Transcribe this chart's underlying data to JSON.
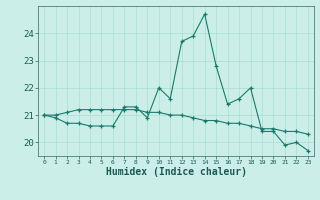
{
  "xlabel": "Humidex (Indice chaleur)",
  "x_values": [
    0,
    1,
    2,
    3,
    4,
    5,
    6,
    7,
    8,
    9,
    10,
    11,
    12,
    13,
    14,
    15,
    16,
    17,
    18,
    19,
    20,
    21,
    22,
    23
  ],
  "line1_y": [
    21.0,
    20.9,
    20.7,
    20.7,
    20.6,
    20.6,
    20.6,
    21.3,
    21.3,
    20.9,
    22.0,
    21.6,
    23.7,
    23.9,
    24.7,
    22.8,
    21.4,
    21.6,
    22.0,
    20.4,
    20.4,
    19.9,
    20.0,
    19.7
  ],
  "line2_y": [
    21.0,
    21.0,
    21.1,
    21.2,
    21.2,
    21.2,
    21.2,
    21.2,
    21.2,
    21.1,
    21.1,
    21.0,
    21.0,
    20.9,
    20.8,
    20.8,
    20.7,
    20.7,
    20.6,
    20.5,
    20.5,
    20.4,
    20.4,
    20.3
  ],
  "line_color": "#1a7a6e",
  "bg_color": "#cceee8",
  "grid_color": "#aaddcc",
  "ylim": [
    19.5,
    25.0
  ],
  "yticks": [
    20,
    21,
    22,
    23,
    24
  ],
  "xticks": [
    0,
    1,
    2,
    3,
    4,
    5,
    6,
    7,
    8,
    9,
    10,
    11,
    12,
    13,
    14,
    15,
    16,
    17,
    18,
    19,
    20,
    21,
    22,
    23
  ]
}
